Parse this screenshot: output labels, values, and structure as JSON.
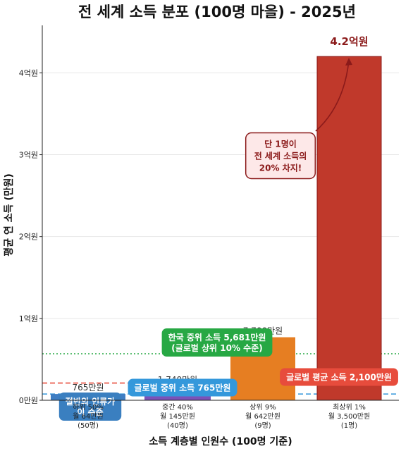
{
  "chart_data": {
    "type": "bar",
    "title": "전 세계 소득 분포 (100명 마을) - 2025년",
    "xlabel": "소득 계층별 인원수 (100명 기준)",
    "ylabel": "평균 연 소득 (만원)",
    "ylim": [
      0,
      45800
    ],
    "yticks": [
      {
        "value": 0,
        "label": "0만원"
      },
      {
        "value": 10000,
        "label": "1억원"
      },
      {
        "value": 20000,
        "label": "2억원"
      },
      {
        "value": 30000,
        "label": "3억원"
      },
      {
        "value": 40000,
        "label": "4억원"
      }
    ],
    "grid": true,
    "bars": [
      {
        "category": [
          "하위 50%",
          "월 64만원",
          "(50명)"
        ],
        "value": 765,
        "people": 50,
        "value_label": "765만원",
        "color": "#3f7ec3"
      },
      {
        "category": [
          "중간 40%",
          "월 145만원",
          "(40명)"
        ],
        "value": 1740,
        "people": 40,
        "value_label": "1,740만원",
        "color": "#7b52b8"
      },
      {
        "category": [
          "상위 9%",
          "월 642만원",
          "(9명)"
        ],
        "value": 7700,
        "people": 9,
        "value_label": "7,700만원",
        "color": "#e67e22"
      },
      {
        "category": [
          "최상위 1%",
          "월 3,500만원",
          "(1명)"
        ],
        "value": 42000,
        "people": 1,
        "value_label": "4.2억원",
        "color": "#c0392b"
      }
    ],
    "reference_lines": [
      {
        "name": "한국 중위 소득",
        "value": 5681,
        "color": "#27a844",
        "style": "dotted"
      },
      {
        "name": "글로벌 평균 소득",
        "value": 2100,
        "color": "#e74c3c",
        "style": "dashed"
      },
      {
        "name": "글로벌 중위 소득",
        "value": 765,
        "color": "#3498db",
        "style": "dashed"
      }
    ],
    "annotations": [
      {
        "lines": [
          "한국 중위 소득 5,681만원",
          "(글로벌 상위 10% 수준)"
        ],
        "color": "#27a844"
      },
      {
        "lines": [
          "글로벌 중위 소득 765만원"
        ],
        "color": "#3498db"
      },
      {
        "lines": [
          "글로벌 평균 소득 2,100만원"
        ],
        "color": "#e74c3c"
      },
      {
        "lines": [
          "절반의 인류가",
          "이 수준"
        ],
        "color": "#3a7fc0"
      },
      {
        "lines": [
          "단 1명이",
          "전 세계 소득의",
          "20% 차지!"
        ],
        "color": "#8b1a1a",
        "fill": "#fde8e8"
      }
    ]
  }
}
